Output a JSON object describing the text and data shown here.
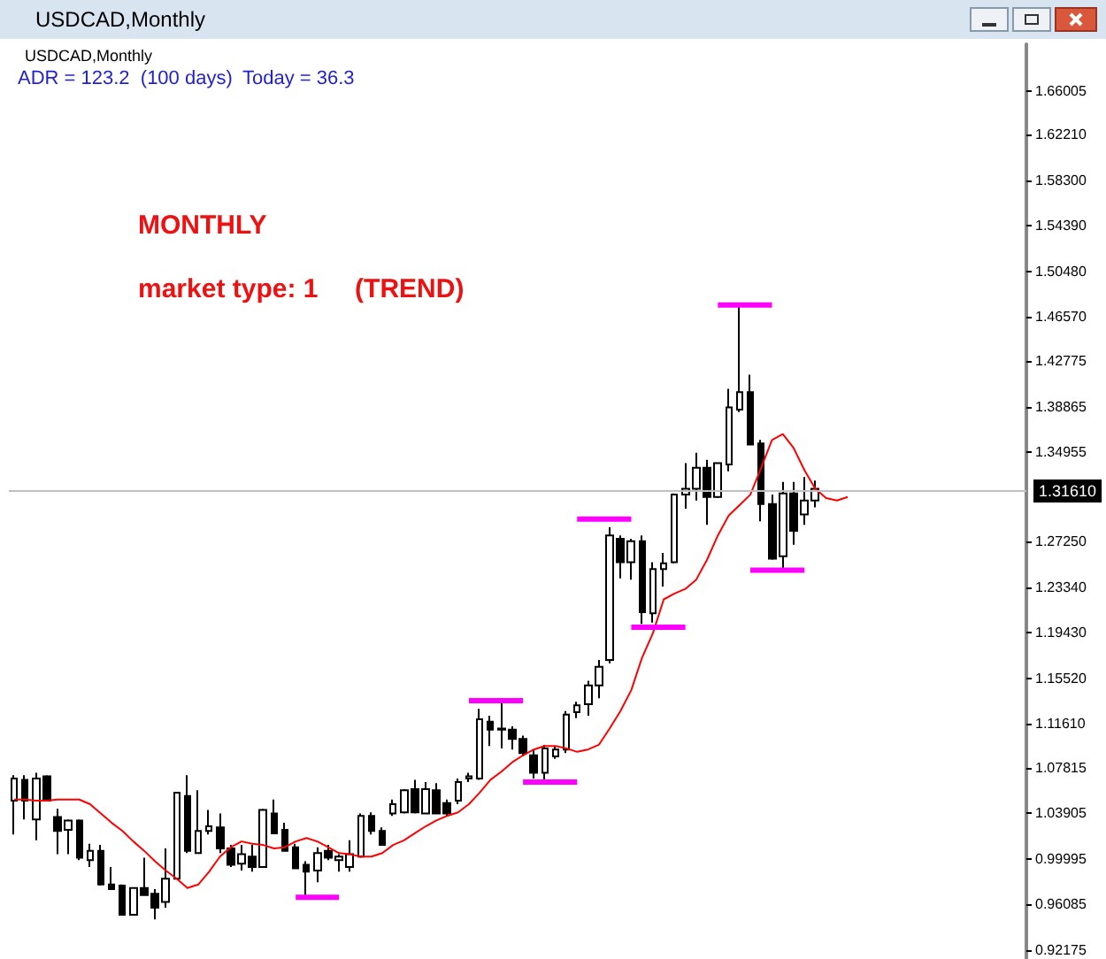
{
  "chart_data": {
    "type": "candlestick",
    "title": "USDCAD,Monthly",
    "annotations": [
      "USDCAD,Monthly",
      "ADR = 123.2  (100 days)",
      "Today = 36.3",
      "MONTHLY",
      "market type: 1     (TREND)"
    ],
    "categories": [
      null,
      null,
      null,
      null,
      null,
      null,
      null,
      null,
      null,
      null,
      null,
      null,
      null,
      null,
      null,
      null,
      null,
      null,
      null,
      null,
      null,
      null,
      null,
      null,
      null,
      null,
      null,
      null,
      null,
      null,
      null,
      null,
      null,
      null,
      null,
      null,
      null,
      null,
      null,
      null,
      null,
      null,
      null,
      null,
      null,
      null,
      null,
      null,
      null,
      null,
      null,
      null,
      null,
      null,
      null,
      null,
      null,
      null,
      null,
      null,
      null,
      null,
      null,
      null,
      null,
      null,
      null,
      null,
      null,
      null,
      null,
      null,
      null,
      null,
      null,
      null,
      null,
      null,
      null,
      null,
      null,
      null,
      null,
      null,
      null,
      null,
      null,
      null,
      null,
      null,
      null,
      null,
      null,
      null
    ],
    "color": "#000000",
    "ohlc": [
      [
        1.05,
        1.072,
        1.021,
        1.069
      ],
      [
        1.068,
        1.072,
        1.034,
        1.05
      ],
      [
        1.034,
        1.074,
        1.016,
        1.069
      ],
      [
        1.071,
        1.072,
        1.05,
        1.05
      ],
      [
        1.036,
        1.043,
        1.004,
        1.024
      ],
      [
        1.025,
        1.034,
        1.004,
        1.033
      ],
      [
        1.033,
        1.034,
        0.999,
        1.001
      ],
      [
        0.999,
        1.013,
        0.993,
        1.007
      ],
      [
        1.007,
        1.012,
        0.977,
        0.978
      ],
      [
        0.978,
        0.993,
        0.974,
        0.974
      ],
      [
        0.977,
        0.978,
        0.952,
        0.952
      ],
      [
        0.952,
        0.975,
        0.952,
        0.975
      ],
      [
        0.975,
        1.001,
        0.969,
        0.969
      ],
      [
        0.97,
        0.974,
        0.948,
        0.958
      ],
      [
        0.963,
        1.009,
        0.958,
        0.983
      ],
      [
        0.983,
        1.057,
        0.983,
        1.057
      ],
      [
        1.054,
        1.072,
        1.005,
        1.007
      ],
      [
        1.005,
        1.059,
        1.005,
        1.024
      ],
      [
        1.024,
        1.042,
        1.021,
        1.028
      ],
      [
        1.027,
        1.039,
        1.005,
        1.009
      ],
      [
        1.009,
        1.012,
        0.993,
        0.995
      ],
      [
        0.996,
        1.012,
        0.99,
        1.004
      ],
      [
        1.002,
        1.012,
        0.989,
        0.993
      ],
      [
        0.993,
        1.043,
        0.993,
        1.042
      ],
      [
        1.039,
        1.051,
        1.022,
        1.022
      ],
      [
        1.025,
        1.031,
        1.007,
        1.007
      ],
      [
        1.01,
        1.013,
        0.992,
        0.992
      ],
      [
        0.995,
        0.998,
        0.969,
        0.989
      ],
      [
        0.99,
        1.01,
        0.98,
        1.005
      ],
      [
        1.007,
        1.012,
        0.999,
        1.001
      ],
      [
        0.999,
        1.004,
        0.989,
        1.002
      ],
      [
        0.993,
        1.016,
        0.989,
        1.004
      ],
      [
        1.002,
        1.039,
        1.001,
        1.037
      ],
      [
        1.037,
        1.04,
        1.021,
        1.024
      ],
      [
        1.024,
        1.027,
        1.012,
        1.012
      ],
      [
        1.039,
        1.051,
        1.037,
        1.047
      ],
      [
        1.04,
        1.06,
        1.039,
        1.059
      ],
      [
        1.06,
        1.068,
        1.039,
        1.04
      ],
      [
        1.039,
        1.066,
        1.039,
        1.06
      ],
      [
        1.059,
        1.065,
        1.039,
        1.039
      ],
      [
        1.048,
        1.051,
        1.037,
        1.039
      ],
      [
        1.05,
        1.069,
        1.047,
        1.066
      ],
      [
        1.069,
        1.074,
        1.066,
        1.071
      ],
      [
        1.069,
        1.129,
        1.068,
        1.12
      ],
      [
        1.118,
        1.123,
        1.097,
        1.111
      ],
      [
        1.111,
        1.136,
        1.095,
        1.112
      ],
      [
        1.111,
        1.114,
        1.094,
        1.103
      ],
      [
        1.103,
        1.106,
        1.088,
        1.091
      ],
      [
        1.089,
        1.094,
        1.069,
        1.074
      ],
      [
        1.074,
        1.098,
        1.068,
        1.095
      ],
      [
        1.088,
        1.097,
        1.086,
        1.094
      ],
      [
        1.094,
        1.127,
        1.091,
        1.124
      ],
      [
        1.126,
        1.135,
        1.121,
        1.132
      ],
      [
        1.133,
        1.153,
        1.123,
        1.149
      ],
      [
        1.149,
        1.171,
        1.138,
        1.165
      ],
      [
        1.171,
        1.285,
        1.168,
        1.278
      ],
      [
        1.275,
        1.278,
        1.241,
        1.255
      ],
      [
        1.255,
        1.275,
        1.24,
        1.273
      ],
      [
        1.273,
        1.278,
        1.202,
        1.212
      ],
      [
        1.211,
        1.255,
        1.203,
        1.249
      ],
      [
        1.249,
        1.263,
        1.234,
        1.254
      ],
      [
        1.255,
        1.314,
        1.254,
        1.313
      ],
      [
        1.313,
        1.34,
        1.301,
        1.318
      ],
      [
        1.318,
        1.349,
        1.308,
        1.336
      ],
      [
        1.336,
        1.343,
        1.287,
        1.311
      ],
      [
        1.311,
        1.34,
        1.31,
        1.34
      ],
      [
        1.339,
        1.404,
        1.333,
        1.388
      ],
      [
        1.386,
        1.476,
        1.384,
        1.401
      ],
      [
        1.401,
        1.416,
        1.356,
        1.356
      ],
      [
        1.357,
        1.36,
        1.29,
        1.305
      ],
      [
        1.305,
        1.313,
        1.257,
        1.258
      ],
      [
        1.26,
        1.324,
        1.249,
        1.314
      ],
      [
        1.314,
        1.324,
        1.27,
        1.282
      ],
      [
        1.296,
        1.328,
        1.287,
        1.308
      ],
      [
        1.308,
        1.325,
        1.302,
        1.318
      ],
      null,
      null,
      null,
      null,
      null,
      null,
      null,
      null,
      null,
      null,
      null,
      null,
      null,
      null,
      null,
      null,
      null,
      null,
      null
    ],
    "series": [
      {
        "type": "line",
        "color": "#ff0000",
        "values": [
          1.051,
          1.051,
          1.05,
          1.05,
          1.051,
          1.051,
          1.051,
          1.047,
          1.039,
          1.031,
          1.024,
          1.015,
          1.007,
          0.998,
          0.99,
          0.983,
          0.975,
          0.978,
          0.989,
          1.002,
          1.01,
          1.015,
          1.013,
          1.012,
          1.009,
          1.01,
          1.015,
          1.018,
          1.015,
          1.01,
          1.005,
          1.004,
          1.002,
          1.002,
          1.005,
          1.012,
          1.016,
          1.022,
          1.028,
          1.033,
          1.037,
          1.04,
          1.047,
          1.057,
          1.068,
          1.075,
          1.083,
          1.089,
          1.094,
          1.097,
          1.097,
          1.095,
          1.092,
          1.094,
          1.098,
          1.112,
          1.127,
          1.145,
          1.173,
          1.194,
          1.223,
          1.228,
          1.232,
          1.24,
          1.257,
          1.278,
          1.295,
          1.304,
          1.313,
          1.336,
          1.36,
          1.365,
          1.353,
          1.334,
          1.318,
          1.31,
          1.308,
          1.311,
          null,
          null,
          null,
          null,
          null,
          null,
          null,
          null,
          null,
          null,
          null,
          null,
          null,
          null,
          null,
          null
        ]
      },
      {
        "type": "line",
        "color": "#ff00ff",
        "values": [
          null,
          null,
          null,
          null,
          null,
          null,
          null,
          null,
          null,
          null,
          null,
          null,
          null,
          null,
          null,
          null,
          null,
          null,
          null,
          null,
          null,
          null,
          null,
          null,
          null,
          null,
          0.967,
          0.967,
          0.967,
          0.967,
          0.967,
          null,
          null,
          null,
          null,
          null,
          null,
          null,
          null,
          null,
          null,
          null,
          null,
          null,
          null,
          null,
          null,
          1.066,
          1.066,
          1.066,
          1.066,
          1.066,
          1.066,
          null,
          null,
          null,
          null,
          1.199,
          1.199,
          1.199,
          1.199,
          1.199,
          1.199,
          null,
          null,
          null,
          null,
          null,
          1.248,
          1.248,
          1.248,
          1.248,
          1.248,
          1.248,
          null,
          null,
          null,
          null,
          null,
          null,
          null,
          null,
          null,
          null,
          null,
          null,
          null,
          null,
          null,
          null,
          null,
          null,
          null,
          null
        ]
      },
      {
        "type": "line",
        "color": "#ff00ff",
        "values": [
          null,
          null,
          null,
          null,
          null,
          null,
          null,
          null,
          null,
          null,
          null,
          null,
          null,
          null,
          null,
          null,
          null,
          null,
          null,
          null,
          null,
          null,
          null,
          null,
          null,
          null,
          null,
          null,
          null,
          null,
          null,
          null,
          null,
          null,
          null,
          null,
          null,
          null,
          null,
          null,
          null,
          null,
          1.136,
          1.136,
          1.136,
          1.136,
          1.136,
          1.136,
          null,
          null,
          null,
          null,
          1.292,
          1.292,
          1.292,
          1.292,
          1.292,
          1.292,
          null,
          null,
          null,
          null,
          null,
          null,
          null,
          1.476,
          1.476,
          1.476,
          1.476,
          1.476,
          1.476,
          null,
          null,
          null,
          null,
          null,
          null,
          null,
          null,
          null,
          null,
          null,
          null,
          null,
          null,
          null,
          null,
          null,
          null,
          null,
          null,
          null,
          null,
          null
        ]
      }
    ],
    "ylim": [
      0.914,
      1.7
    ],
    "yticks": [
      0.92175,
      0.96085,
      0.99995,
      1.03905,
      1.07815,
      {
        "value": 1.1161,
        "label": "1.11610"
      },
      {
        "value": 1.1552,
        "label": "1.15520"
      },
      {
        "value": 1.1943,
        "label": "1.19430"
      },
      {
        "value": 1.2334,
        "label": "1.23340"
      },
      {
        "value": 1.2725,
        "label": "1.27250"
      },
      1.34955,
      1.38865,
      1.42775,
      {
        "value": 1.4657,
        "label": "1.46570"
      },
      {
        "value": 1.5048,
        "label": "1.50480"
      },
      {
        "value": 1.5439,
        "label": "1.54390"
      },
      {
        "value": 1.583,
        "label": "1.58300"
      },
      {
        "value": 1.6221,
        "label": "1.62210"
      },
      1.66005
    ],
    "ref_lines": [
      {
        "axis": "y",
        "value": 1.3161,
        "label": "1.31610",
        "color": "#c0c0c0"
      }
    ],
    "grid": false,
    "tick_labels": "y"
  }
}
